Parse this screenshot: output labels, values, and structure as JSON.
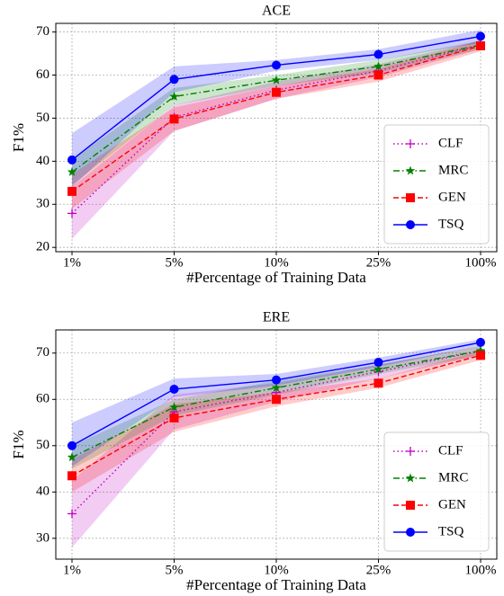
{
  "chart_data": [
    {
      "type": "line",
      "title": "ACE",
      "x_label": "#Percentage of Training Data",
      "y_label": "F1%",
      "categories": [
        "1%",
        "5%",
        "10%",
        "25%",
        "100%"
      ],
      "ylim": [
        19,
        72
      ],
      "yticks": [
        20,
        30,
        40,
        50,
        60,
        70
      ],
      "grid": true,
      "legend": "lower right",
      "series": [
        {
          "name": "CLF",
          "color": "#bf00bf",
          "marker": "plus",
          "dash": "dotted",
          "values": [
            27.9,
            50.2,
            56.5,
            61,
            67
          ],
          "lower": [
            22,
            47,
            54.5,
            59.5,
            66
          ],
          "upper": [
            34,
            53,
            58.5,
            62.5,
            68
          ]
        },
        {
          "name": "MRC",
          "color": "#008000",
          "marker": "star",
          "dash": "dashdot",
          "values": [
            37.5,
            55,
            58.8,
            62,
            67
          ],
          "lower": [
            34.5,
            53,
            57.5,
            60.5,
            66
          ],
          "upper": [
            40.5,
            57,
            60,
            63.5,
            68
          ]
        },
        {
          "name": "GEN",
          "color": "#ff0000",
          "marker": "square",
          "dash": "dashed",
          "values": [
            33,
            49.8,
            56,
            60,
            66.8
          ],
          "lower": [
            29,
            47,
            54.5,
            58.5,
            65.5
          ],
          "upper": [
            37,
            52.5,
            57.5,
            61.5,
            68
          ]
        },
        {
          "name": "TSQ",
          "color": "#0000ff",
          "marker": "circle",
          "dash": "solid",
          "values": [
            40.3,
            59,
            62.3,
            64.8,
            69
          ],
          "lower": [
            34,
            56,
            61,
            63.5,
            67.5
          ],
          "upper": [
            46.5,
            62,
            63.5,
            66,
            70.5
          ]
        }
      ]
    },
    {
      "type": "line",
      "title": "ERE",
      "x_label": "#Percentage of Training Data",
      "y_label": "F1%",
      "categories": [
        "1%",
        "5%",
        "10%",
        "25%",
        "100%"
      ],
      "ylim": [
        25.5,
        75
      ],
      "yticks": [
        30,
        40,
        50,
        60,
        70
      ],
      "grid": true,
      "legend": "lower right",
      "series": [
        {
          "name": "CLF",
          "color": "#bf00bf",
          "marker": "plus",
          "dash": "dotted",
          "values": [
            35.3,
            57.3,
            61.5,
            66,
            70.5
          ],
          "lower": [
            28,
            53.5,
            59.5,
            64.5,
            69.5
          ],
          "upper": [
            42.5,
            61,
            63.5,
            67.5,
            71.5
          ]
        },
        {
          "name": "MRC",
          "color": "#008000",
          "marker": "star",
          "dash": "dashdot",
          "values": [
            47.5,
            58.3,
            62.5,
            66.5,
            70.5
          ],
          "lower": [
            45,
            56.5,
            61,
            65.5,
            69.5
          ],
          "upper": [
            50,
            60,
            64,
            67.5,
            71.5
          ]
        },
        {
          "name": "GEN",
          "color": "#ff0000",
          "marker": "square",
          "dash": "dashed",
          "values": [
            43.5,
            56,
            60,
            63.5,
            69.5
          ],
          "lower": [
            40,
            53,
            58.5,
            62.5,
            68.5
          ],
          "upper": [
            47,
            59,
            61.5,
            64.5,
            70.5
          ]
        },
        {
          "name": "TSQ",
          "color": "#0000ff",
          "marker": "circle",
          "dash": "solid",
          "values": [
            50,
            62.2,
            64.2,
            68,
            72.3
          ],
          "lower": [
            45.5,
            60.5,
            63,
            67,
            71.5
          ],
          "upper": [
            55,
            64.5,
            65.5,
            69,
            73
          ]
        }
      ]
    }
  ]
}
